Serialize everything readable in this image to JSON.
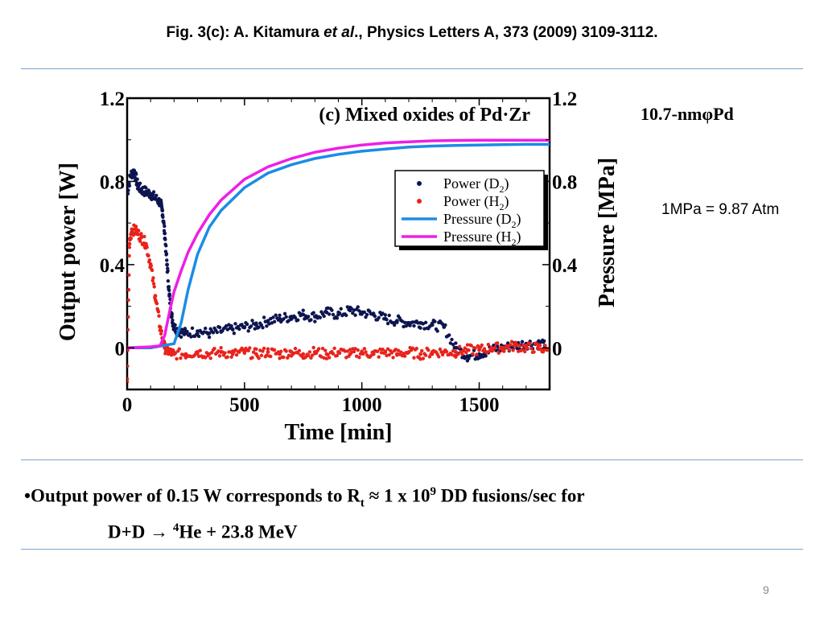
{
  "slide": {
    "title_parts": [
      "Fig. 3(c):  A. Kitamura ",
      "et al",
      "., Physics Letters A, 373 (2009) 3109-3112."
    ],
    "side_note1": "10.7-nmφPd",
    "side_note2": "1MPa = 9.87 Atm",
    "bullet": {
      "line1_a": "•Output power of 0.15 W corresponds to R",
      "line1_sub": "t",
      "line1_b": " ≈  1 x 10",
      "line1_sup": "9",
      "line1_c": " DD fusions/sec for",
      "line2_a": "D+D → ",
      "line2_sup": "4",
      "line2_b": "He + 23.8 MeV"
    },
    "page_number": "9"
  },
  "chart_data": {
    "type": "scatter",
    "annotation": "(c) Mixed oxides of Pd·Zr",
    "xlabel": "Time [min]",
    "ylabel_left": "Output power [W]",
    "ylabel_right": "Pressure [MPa]",
    "xlim": [
      0,
      1800
    ],
    "ylim_left": [
      -0.2,
      1.2
    ],
    "ylim_right": [
      -0.2,
      1.2
    ],
    "xticks": [
      0,
      500,
      1000,
      1500
    ],
    "xtick_labels": [
      "0",
      "500",
      "1000",
      "1500"
    ],
    "yticks_left": [
      0,
      0.4,
      0.8,
      1.2
    ],
    "yticks_left_labels": [
      "0",
      "0.4",
      "0.8",
      "1.2"
    ],
    "yticks_right": [
      0,
      0.4,
      0.8,
      1.2
    ],
    "yticks_right_labels": [
      "0",
      "0.4",
      "0.8",
      "1.2"
    ],
    "legend_placement": "right-middle",
    "series": [
      {
        "label_main": "Power (D",
        "label_sub": "2",
        "label_end": ")",
        "kind": "scatter",
        "color": "#0d1550",
        "axis": "left",
        "points": [
          [
            0,
            0.74
          ],
          [
            15,
            0.83
          ],
          [
            30,
            0.85
          ],
          [
            45,
            0.78
          ],
          [
            60,
            0.76
          ],
          [
            80,
            0.75
          ],
          [
            100,
            0.74
          ],
          [
            120,
            0.72
          ],
          [
            140,
            0.7
          ],
          [
            150,
            0.66
          ],
          [
            160,
            0.55
          ],
          [
            170,
            0.4
          ],
          [
            180,
            0.25
          ],
          [
            190,
            0.15
          ],
          [
            200,
            0.1
          ],
          [
            220,
            0.08
          ],
          [
            250,
            0.07
          ],
          [
            300,
            0.08
          ],
          [
            350,
            0.07
          ],
          [
            400,
            0.08
          ],
          [
            450,
            0.09
          ],
          [
            500,
            0.1
          ],
          [
            550,
            0.11
          ],
          [
            600,
            0.13
          ],
          [
            650,
            0.14
          ],
          [
            700,
            0.15
          ],
          [
            750,
            0.16
          ],
          [
            800,
            0.15
          ],
          [
            850,
            0.17
          ],
          [
            900,
            0.16
          ],
          [
            950,
            0.18
          ],
          [
            1000,
            0.17
          ],
          [
            1050,
            0.16
          ],
          [
            1100,
            0.14
          ],
          [
            1150,
            0.13
          ],
          [
            1200,
            0.12
          ],
          [
            1250,
            0.12
          ],
          [
            1300,
            0.11
          ],
          [
            1350,
            0.1
          ],
          [
            1400,
            0.0
          ],
          [
            1450,
            -0.04
          ],
          [
            1500,
            -0.03
          ],
          [
            1550,
            -0.01
          ],
          [
            1600,
            0.0
          ],
          [
            1650,
            0.01
          ],
          [
            1700,
            0.02
          ],
          [
            1750,
            0.02
          ],
          [
            1780,
            0.01
          ]
        ]
      },
      {
        "label_main": "Power (H",
        "label_sub": "2",
        "label_end": ")",
        "kind": "scatter",
        "color": "#e8231c",
        "axis": "left",
        "points": [
          [
            0,
            -0.15
          ],
          [
            10,
            0.5
          ],
          [
            20,
            0.57
          ],
          [
            40,
            0.56
          ],
          [
            60,
            0.53
          ],
          [
            80,
            0.5
          ],
          [
            100,
            0.4
          ],
          [
            120,
            0.25
          ],
          [
            140,
            0.1
          ],
          [
            160,
            0.0
          ],
          [
            180,
            -0.02
          ],
          [
            200,
            -0.03
          ],
          [
            250,
            -0.03
          ],
          [
            300,
            -0.02
          ],
          [
            350,
            -0.03
          ],
          [
            400,
            -0.02
          ],
          [
            450,
            -0.03
          ],
          [
            500,
            -0.02
          ],
          [
            550,
            -0.03
          ],
          [
            600,
            -0.02
          ],
          [
            650,
            -0.03
          ],
          [
            700,
            -0.02
          ],
          [
            750,
            -0.03
          ],
          [
            800,
            -0.02
          ],
          [
            850,
            -0.03
          ],
          [
            900,
            -0.02
          ],
          [
            950,
            -0.03
          ],
          [
            1000,
            -0.02
          ],
          [
            1050,
            -0.03
          ],
          [
            1100,
            -0.02
          ],
          [
            1150,
            -0.03
          ],
          [
            1200,
            -0.02
          ],
          [
            1250,
            -0.03
          ],
          [
            1300,
            -0.02
          ],
          [
            1350,
            -0.02
          ],
          [
            1400,
            -0.02
          ],
          [
            1450,
            -0.01
          ],
          [
            1500,
            -0.01
          ],
          [
            1550,
            0.0
          ],
          [
            1600,
            0.0
          ],
          [
            1650,
            0.01
          ],
          [
            1700,
            0.0
          ],
          [
            1750,
            0.0
          ],
          [
            1790,
            -0.01
          ]
        ]
      },
      {
        "label_main": "Pressure (D",
        "label_sub": "2",
        "label_end": ")",
        "kind": "line",
        "color": "#1a8ce6",
        "axis": "right",
        "points": [
          [
            0,
            0.0
          ],
          [
            100,
            0.0
          ],
          [
            150,
            0.01
          ],
          [
            200,
            0.02
          ],
          [
            230,
            0.12
          ],
          [
            260,
            0.28
          ],
          [
            300,
            0.45
          ],
          [
            350,
            0.58
          ],
          [
            400,
            0.66
          ],
          [
            500,
            0.77
          ],
          [
            600,
            0.84
          ],
          [
            700,
            0.88
          ],
          [
            800,
            0.91
          ],
          [
            900,
            0.93
          ],
          [
            1000,
            0.945
          ],
          [
            1100,
            0.955
          ],
          [
            1200,
            0.965
          ],
          [
            1300,
            0.97
          ],
          [
            1400,
            0.973
          ],
          [
            1500,
            0.975
          ],
          [
            1600,
            0.977
          ],
          [
            1700,
            0.978
          ],
          [
            1800,
            0.978
          ]
        ]
      },
      {
        "label_main": "Pressure (H",
        "label_sub": "2",
        "label_end": ")",
        "kind": "line",
        "color": "#ee1ee6",
        "axis": "right",
        "points": [
          [
            0,
            0.0
          ],
          [
            100,
            0.005
          ],
          [
            140,
            0.01
          ],
          [
            160,
            0.06
          ],
          [
            180,
            0.17
          ],
          [
            200,
            0.27
          ],
          [
            230,
            0.37
          ],
          [
            260,
            0.46
          ],
          [
            300,
            0.55
          ],
          [
            350,
            0.64
          ],
          [
            400,
            0.71
          ],
          [
            500,
            0.81
          ],
          [
            600,
            0.87
          ],
          [
            700,
            0.91
          ],
          [
            800,
            0.94
          ],
          [
            900,
            0.96
          ],
          [
            1000,
            0.975
          ],
          [
            1100,
            0.985
          ],
          [
            1200,
            0.99
          ],
          [
            1300,
            0.995
          ],
          [
            1400,
            0.997
          ],
          [
            1500,
            0.998
          ],
          [
            1600,
            0.998
          ],
          [
            1700,
            0.998
          ],
          [
            1800,
            0.998
          ]
        ]
      }
    ]
  }
}
